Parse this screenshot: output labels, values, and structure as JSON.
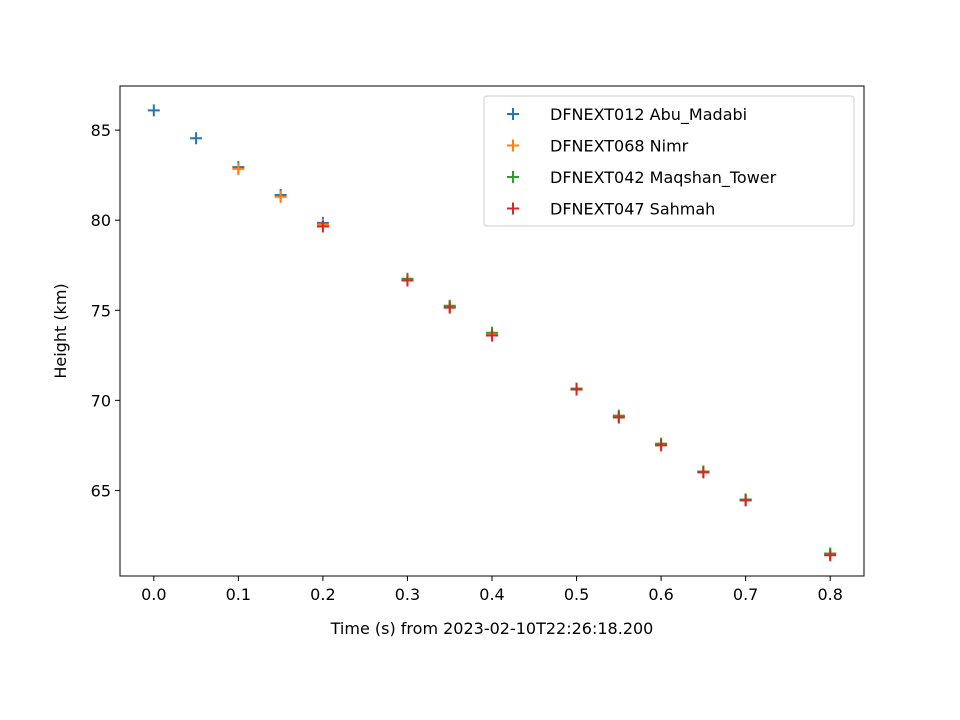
{
  "chart_data": {
    "type": "scatter",
    "title": "",
    "xlabel": "Time (s) from 2023-02-10T22:26:18.200",
    "ylabel": "Height (km)",
    "xlim": [
      -0.04,
      0.84
    ],
    "ylim": [
      60.25,
      87.45
    ],
    "xticks": [
      0.0,
      0.1,
      0.2,
      0.3,
      0.4,
      0.5,
      0.6,
      0.7,
      0.8
    ],
    "xtick_labels": [
      "0.0",
      "0.1",
      "0.2",
      "0.3",
      "0.4",
      "0.5",
      "0.6",
      "0.7",
      "0.8"
    ],
    "yticks": [
      65,
      70,
      75,
      80,
      85
    ],
    "ytick_labels": [
      "65",
      "70",
      "75",
      "80",
      "85"
    ],
    "grid": false,
    "legend_position": "top-right",
    "marker": "+",
    "series": [
      {
        "name": "DFNEXT012 Abu_Madabi",
        "color": "#1f77b4",
        "x": [
          0.0,
          0.05,
          0.1,
          0.15,
          0.2
        ],
        "y": [
          86.1,
          84.55,
          82.95,
          81.4,
          79.85
        ]
      },
      {
        "name": "DFNEXT068 Nimr",
        "color": "#ff7f0e",
        "x": [
          0.1,
          0.15,
          0.2,
          0.3,
          0.35,
          0.4,
          0.5,
          0.55,
          0.6,
          0.65,
          0.7,
          0.8
        ],
        "y": [
          82.85,
          81.3,
          79.75,
          76.7,
          75.2,
          73.65,
          70.65,
          69.1,
          67.55,
          66.05,
          64.5,
          61.45
        ]
      },
      {
        "name": "DFNEXT042 Maqshan_Tower",
        "color": "#2ca02c",
        "x": [
          0.3,
          0.35,
          0.4,
          0.5,
          0.55,
          0.6,
          0.65,
          0.7,
          0.8
        ],
        "y": [
          76.75,
          75.25,
          73.75,
          70.65,
          69.15,
          67.6,
          66.05,
          64.5,
          61.5
        ]
      },
      {
        "name": "DFNEXT047 Sahmah",
        "color": "#d62728",
        "x": [
          0.2,
          0.3,
          0.35,
          0.4,
          0.5,
          0.55,
          0.6,
          0.65,
          0.7,
          0.8
        ],
        "y": [
          79.65,
          76.65,
          75.15,
          73.6,
          70.6,
          69.05,
          67.5,
          66.0,
          64.45,
          61.4
        ]
      }
    ]
  }
}
